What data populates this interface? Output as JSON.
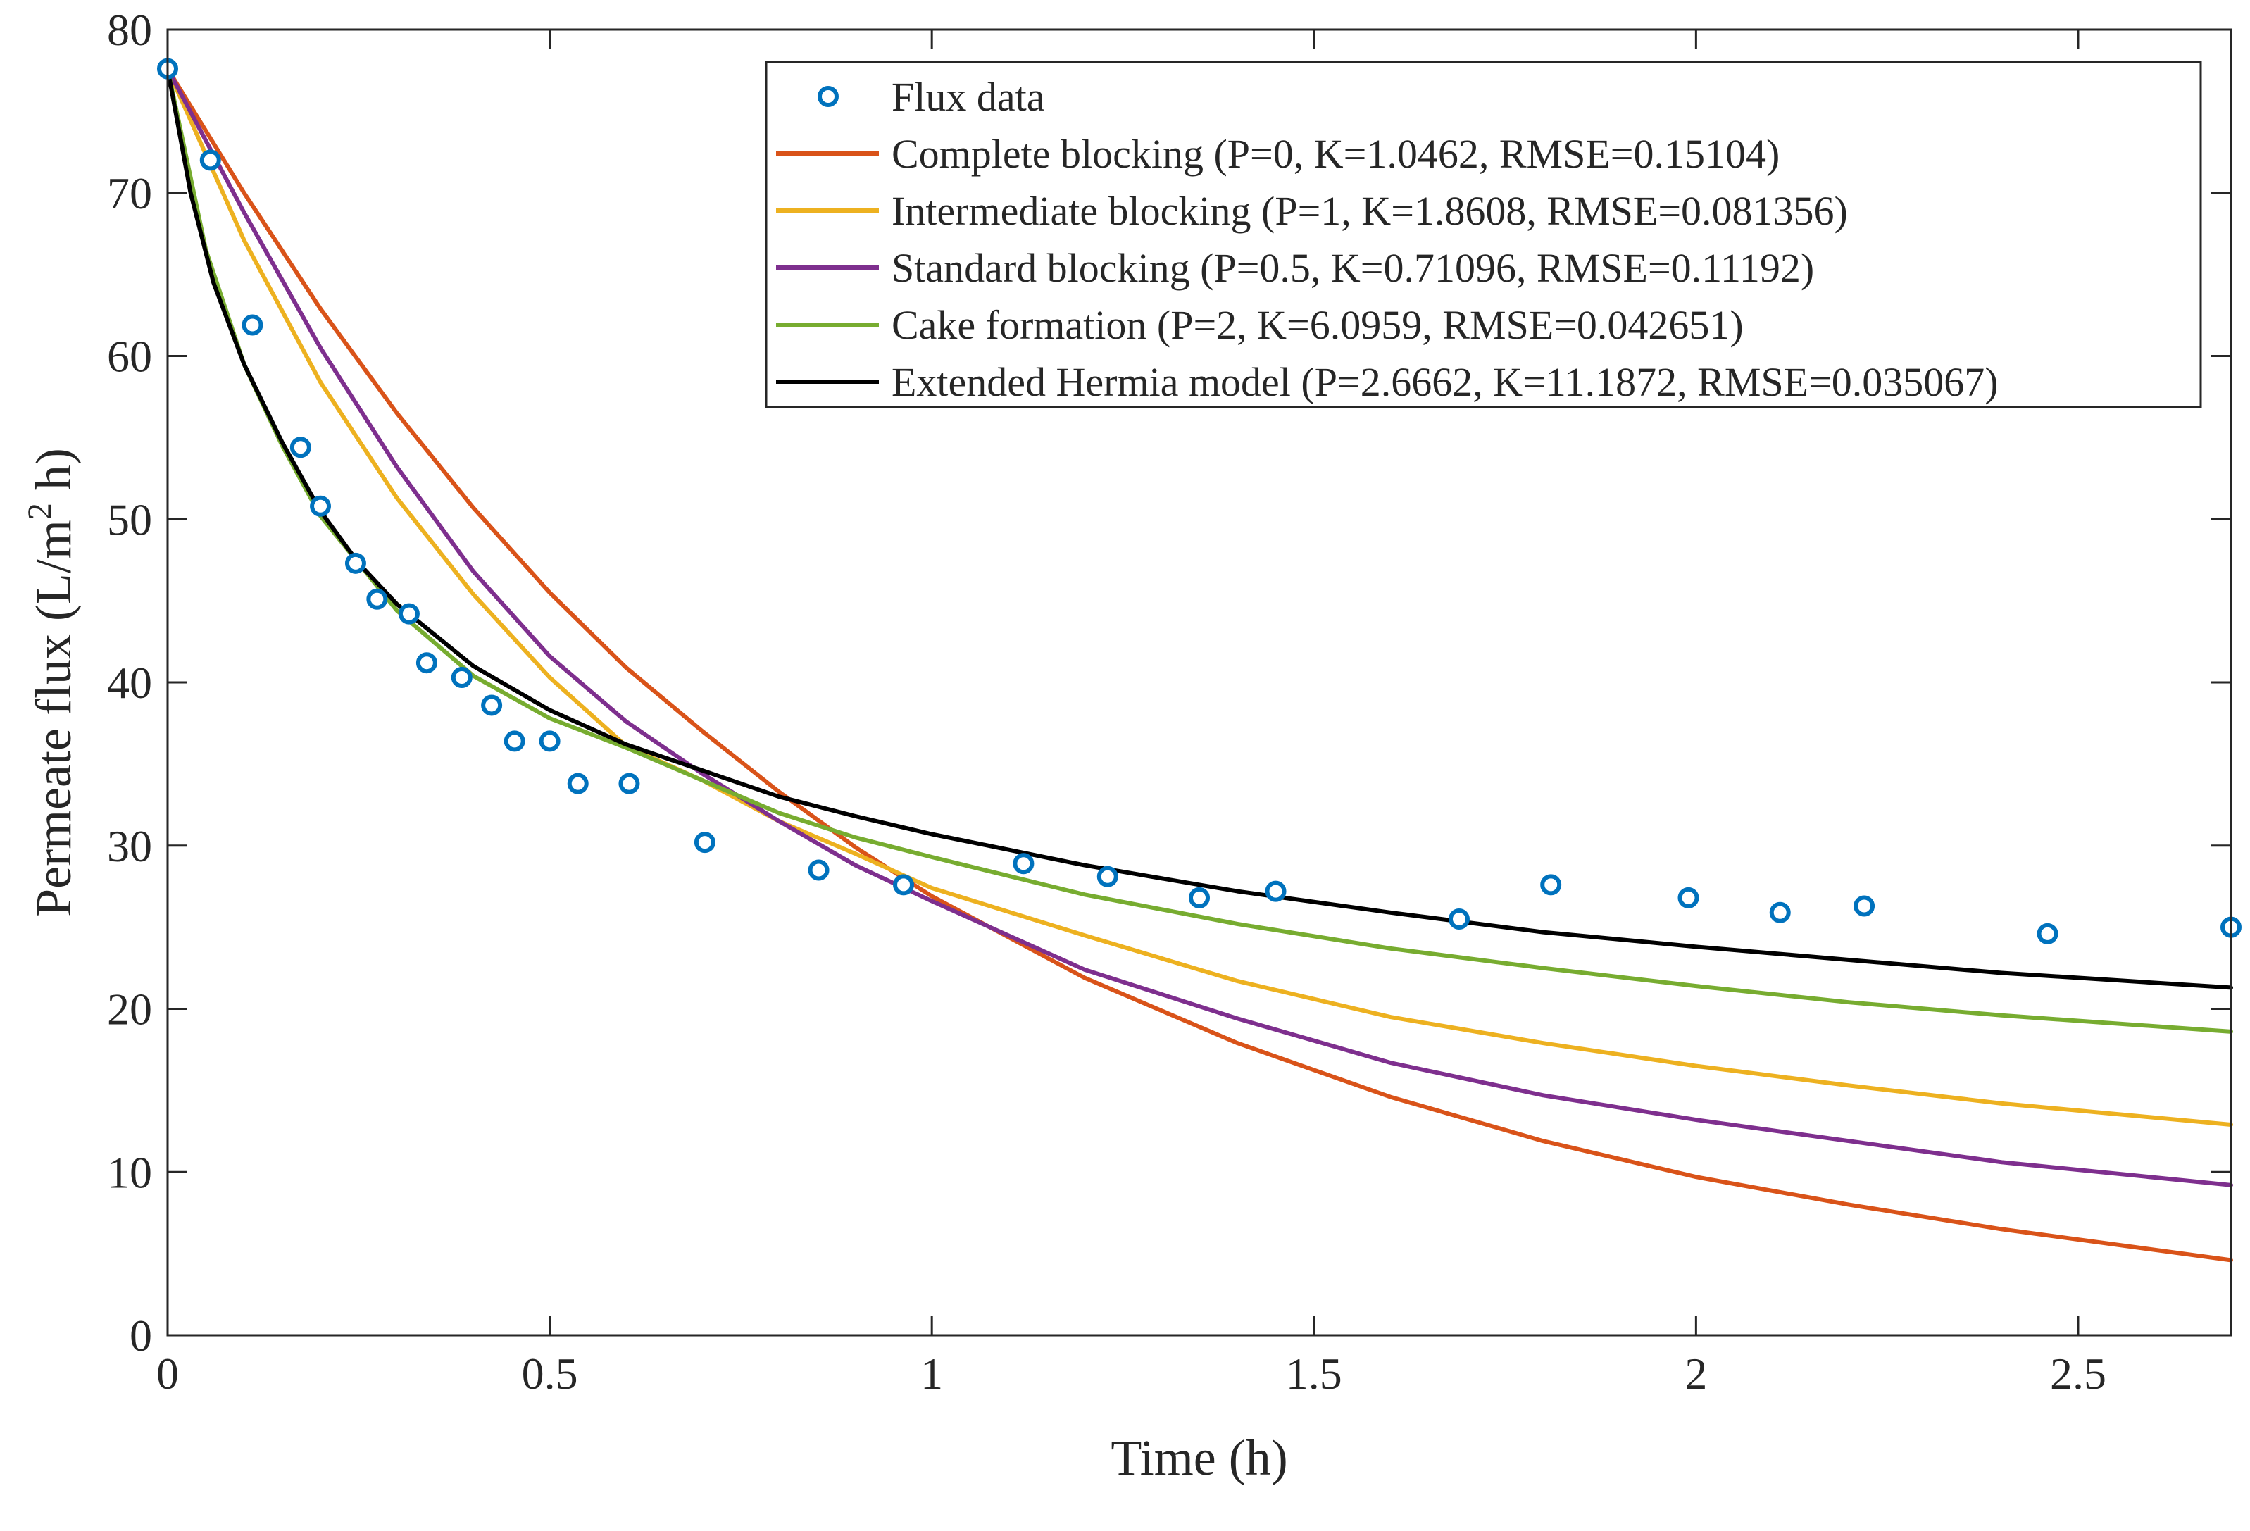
{
  "chart_data": {
    "type": "line",
    "title": "",
    "xlabel": "Time (h)",
    "ylabel": "Permeate flux (L/m",
    "ylabel_sup": "2",
    "ylabel_tail": " h)",
    "xlim": [
      0,
      2.7
    ],
    "ylim": [
      0,
      80
    ],
    "xticks": [
      0,
      0.5,
      1,
      1.5,
      2,
      2.5
    ],
    "xtick_labels": [
      "0",
      "0.5",
      "1",
      "1.5",
      "2",
      "2.5"
    ],
    "yticks": [
      0,
      10,
      20,
      30,
      40,
      50,
      60,
      70,
      80
    ],
    "ytick_labels": [
      "0",
      "10",
      "20",
      "30",
      "40",
      "50",
      "60",
      "70",
      "80"
    ],
    "grid": false,
    "legend_position": "top-right",
    "scatter": {
      "name": "Flux data",
      "color": "#0072bd",
      "x": [
        0,
        0.056,
        0.111,
        0.174,
        0.2,
        0.246,
        0.274,
        0.316,
        0.339,
        0.385,
        0.424,
        0.454,
        0.5,
        0.537,
        0.604,
        0.703,
        0.852,
        0.963,
        1.12,
        1.23,
        1.35,
        1.45,
        1.69,
        1.81,
        1.99,
        2.11,
        2.22,
        2.46,
        2.7
      ],
      "y": [
        77.6,
        72.0,
        61.9,
        54.4,
        50.8,
        47.3,
        45.1,
        44.2,
        41.2,
        40.3,
        38.6,
        36.4,
        36.4,
        33.8,
        33.8,
        30.2,
        28.5,
        27.6,
        28.9,
        28.1,
        26.8,
        27.2,
        25.5,
        27.6,
        26.8,
        25.9,
        26.3,
        24.6,
        25.0
      ]
    },
    "series": [
      {
        "name": "Complete blocking (P=0, K=1.0462, RMSE=0.15104)",
        "color": "#d95319",
        "x": [
          0,
          0.1,
          0.2,
          0.3,
          0.4,
          0.5,
          0.6,
          0.7,
          0.8,
          0.9,
          1.0,
          1.2,
          1.4,
          1.6,
          1.8,
          2.0,
          2.2,
          2.4,
          2.7
        ],
        "y": [
          77.6,
          70.0,
          62.9,
          56.5,
          50.7,
          45.5,
          40.9,
          37.0,
          33.3,
          29.9,
          26.9,
          21.9,
          17.9,
          14.6,
          11.9,
          9.7,
          8.0,
          6.5,
          4.6
        ]
      },
      {
        "name": "Intermediate blocking (P=1, K=1.8608, RMSE=0.081356)",
        "color": "#edb120",
        "x": [
          0,
          0.1,
          0.2,
          0.3,
          0.4,
          0.5,
          0.6,
          0.7,
          0.8,
          0.9,
          1.0,
          1.2,
          1.4,
          1.6,
          1.8,
          2.0,
          2.2,
          2.4,
          2.7
        ],
        "y": [
          77.6,
          67.1,
          58.4,
          51.3,
          45.4,
          40.3,
          36.1,
          34.0,
          31.5,
          29.5,
          27.4,
          24.5,
          21.7,
          19.5,
          17.9,
          16.5,
          15.3,
          14.2,
          12.9
        ]
      },
      {
        "name": "Standard blocking (P=0.5, K=0.71096, RMSE=0.11192)",
        "color": "#7e2f8e",
        "x": [
          0,
          0.1,
          0.2,
          0.3,
          0.4,
          0.5,
          0.6,
          0.7,
          0.8,
          0.9,
          1.0,
          1.2,
          1.4,
          1.6,
          1.8,
          2.0,
          2.2,
          2.4,
          2.7
        ],
        "y": [
          77.6,
          68.8,
          60.5,
          53.2,
          46.8,
          41.6,
          37.6,
          34.4,
          31.5,
          28.8,
          26.6,
          22.4,
          19.4,
          16.7,
          14.7,
          13.2,
          11.9,
          10.6,
          9.2
        ]
      },
      {
        "name": "Cake formation (P=2, K=6.0959, RMSE=0.042651)",
        "color": "#77ac30",
        "x": [
          0,
          0.05,
          0.1,
          0.15,
          0.2,
          0.3,
          0.4,
          0.5,
          0.6,
          0.7,
          0.8,
          0.9,
          1.0,
          1.2,
          1.4,
          1.6,
          1.8,
          2.0,
          2.2,
          2.4,
          2.7
        ],
        "y": [
          77.6,
          66.5,
          59.5,
          54.5,
          50.2,
          44.4,
          40.4,
          37.8,
          36.0,
          34.0,
          32.0,
          30.5,
          29.3,
          27.0,
          25.2,
          23.7,
          22.5,
          21.4,
          20.4,
          19.6,
          18.6
        ]
      },
      {
        "name": "Extended Hermia model (P=2.6662, K=11.1872, RMSE=0.035067)",
        "color": "#000000",
        "x": [
          0,
          0.03,
          0.06,
          0.1,
          0.15,
          0.2,
          0.25,
          0.3,
          0.4,
          0.5,
          0.6,
          0.7,
          0.8,
          0.9,
          1.0,
          1.2,
          1.4,
          1.6,
          1.8,
          2.0,
          2.2,
          2.4,
          2.7
        ],
        "y": [
          77.6,
          70.0,
          64.5,
          59.5,
          54.7,
          50.5,
          47.3,
          44.8,
          41.0,
          38.3,
          36.2,
          34.6,
          33.0,
          31.8,
          30.7,
          28.8,
          27.2,
          25.9,
          24.7,
          23.8,
          23.0,
          22.2,
          21.3
        ]
      }
    ]
  }
}
